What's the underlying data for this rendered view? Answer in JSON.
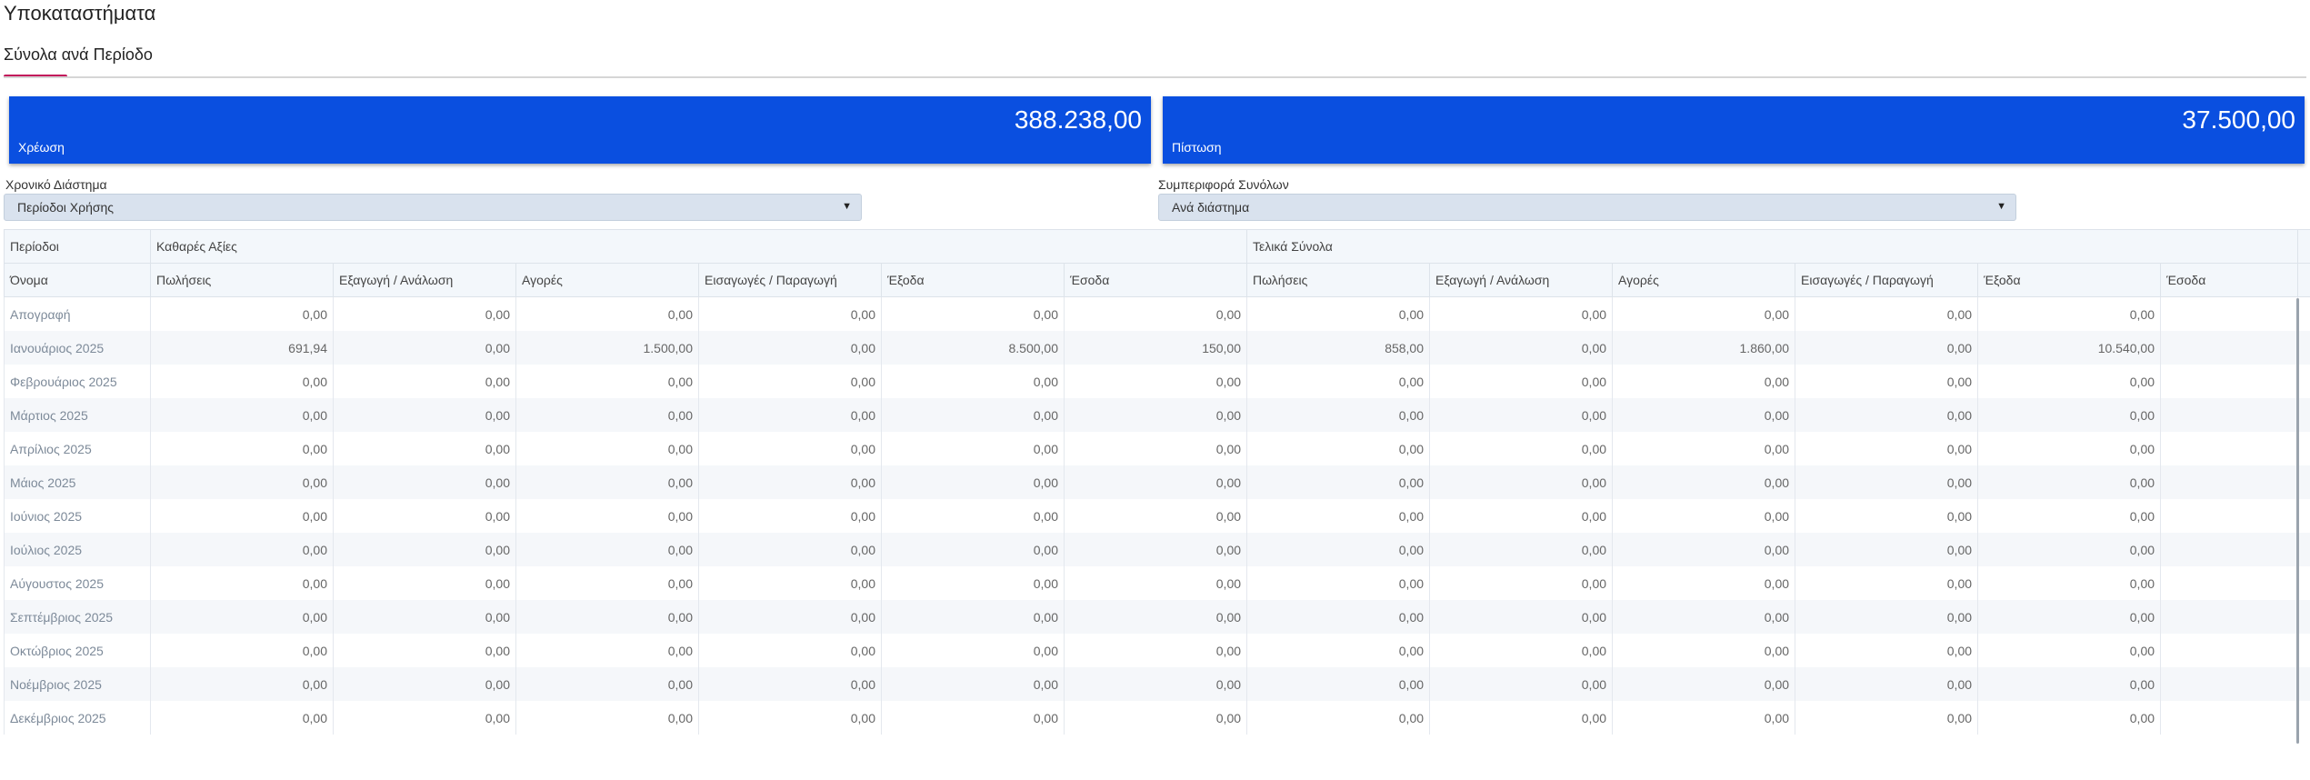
{
  "page": {
    "title": "Υποκαταστήματα"
  },
  "tabs": {
    "active": "Σύνολα ανά Περίοδο"
  },
  "cards": {
    "debit": {
      "value": "388.238,00",
      "label": "Χρέωση"
    },
    "credit": {
      "value": "37.500,00",
      "label": "Πίστωση"
    }
  },
  "filters": {
    "period_label": "Χρονικό Διάστημα",
    "period_value": "Περίοδοι Χρήσης",
    "behavior_label": "Συμπεριφορά Συνόλων",
    "behavior_value": "Ανά διάστημα"
  },
  "table": {
    "group_headers": [
      "Περίοδοι",
      "Καθαρές Αξίες",
      "Τελικά Σύνολα"
    ],
    "columns": [
      "Όνομα",
      "Πωλήσεις",
      "Εξαγωγή / Ανάλωση",
      "Αγορές",
      "Εισαγωγές / Παραγωγή",
      "Έξοδα",
      "Έσοδα",
      "Πωλήσεις",
      "Εξαγωγή / Ανάλωση",
      "Αγορές",
      "Εισαγωγές / Παραγωγή",
      "Έξοδα",
      "Έσοδα"
    ],
    "rows": [
      [
        "Απογραφή",
        "0,00",
        "0,00",
        "0,00",
        "0,00",
        "0,00",
        "0,00",
        "0,00",
        "0,00",
        "0,00",
        "0,00",
        "0,00",
        ""
      ],
      [
        "Ιανουάριος 2025",
        "691,94",
        "0,00",
        "1.500,00",
        "0,00",
        "8.500,00",
        "150,00",
        "858,00",
        "0,00",
        "1.860,00",
        "0,00",
        "10.540,00",
        ""
      ],
      [
        "Φεβρουάριος 2025",
        "0,00",
        "0,00",
        "0,00",
        "0,00",
        "0,00",
        "0,00",
        "0,00",
        "0,00",
        "0,00",
        "0,00",
        "0,00",
        ""
      ],
      [
        "Μάρτιος 2025",
        "0,00",
        "0,00",
        "0,00",
        "0,00",
        "0,00",
        "0,00",
        "0,00",
        "0,00",
        "0,00",
        "0,00",
        "0,00",
        ""
      ],
      [
        "Απρίλιος 2025",
        "0,00",
        "0,00",
        "0,00",
        "0,00",
        "0,00",
        "0,00",
        "0,00",
        "0,00",
        "0,00",
        "0,00",
        "0,00",
        ""
      ],
      [
        "Μάιος 2025",
        "0,00",
        "0,00",
        "0,00",
        "0,00",
        "0,00",
        "0,00",
        "0,00",
        "0,00",
        "0,00",
        "0,00",
        "0,00",
        ""
      ],
      [
        "Ιούνιος 2025",
        "0,00",
        "0,00",
        "0,00",
        "0,00",
        "0,00",
        "0,00",
        "0,00",
        "0,00",
        "0,00",
        "0,00",
        "0,00",
        ""
      ],
      [
        "Ιούλιος 2025",
        "0,00",
        "0,00",
        "0,00",
        "0,00",
        "0,00",
        "0,00",
        "0,00",
        "0,00",
        "0,00",
        "0,00",
        "0,00",
        ""
      ],
      [
        "Αύγουστος 2025",
        "0,00",
        "0,00",
        "0,00",
        "0,00",
        "0,00",
        "0,00",
        "0,00",
        "0,00",
        "0,00",
        "0,00",
        "0,00",
        ""
      ],
      [
        "Σεπτέμβριος 2025",
        "0,00",
        "0,00",
        "0,00",
        "0,00",
        "0,00",
        "0,00",
        "0,00",
        "0,00",
        "0,00",
        "0,00",
        "0,00",
        ""
      ],
      [
        "Οκτώβριος 2025",
        "0,00",
        "0,00",
        "0,00",
        "0,00",
        "0,00",
        "0,00",
        "0,00",
        "0,00",
        "0,00",
        "0,00",
        "0,00",
        ""
      ],
      [
        "Νοέμβριος 2025",
        "0,00",
        "0,00",
        "0,00",
        "0,00",
        "0,00",
        "0,00",
        "0,00",
        "0,00",
        "0,00",
        "0,00",
        "0,00",
        ""
      ],
      [
        "Δεκέμβριος 2025",
        "0,00",
        "0,00",
        "0,00",
        "0,00",
        "0,00",
        "0,00",
        "0,00",
        "0,00",
        "0,00",
        "0,00",
        "0,00",
        ""
      ]
    ]
  }
}
